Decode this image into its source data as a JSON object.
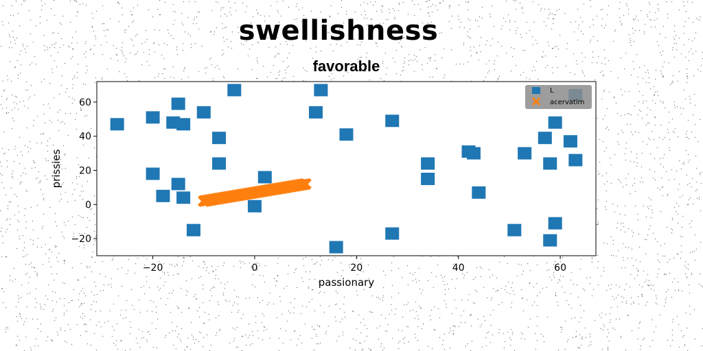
{
  "figure": {
    "suptitle": "swellishness",
    "title": "favorable"
  },
  "chart_data": {
    "type": "scatter",
    "xlabel": "passionary",
    "ylabel": "prissies",
    "xlim": [
      -31,
      67
    ],
    "ylim": [
      -30,
      72
    ],
    "xticks": [
      -20,
      0,
      20,
      40,
      60
    ],
    "yticks": [
      -20,
      0,
      20,
      40,
      60
    ],
    "grid": false,
    "legend_position": "top-right",
    "series": [
      {
        "name": "L",
        "color": "#1f77b4",
        "marker": "square",
        "points": [
          [
            -27,
            47
          ],
          [
            -20,
            51
          ],
          [
            -16,
            48
          ],
          [
            -15,
            59
          ],
          [
            -14,
            47
          ],
          [
            -10,
            54
          ],
          [
            -7,
            39
          ],
          [
            -7,
            24
          ],
          [
            -4,
            67
          ],
          [
            -20,
            18
          ],
          [
            -18,
            5
          ],
          [
            -15,
            12
          ],
          [
            -14,
            4
          ],
          [
            -12,
            -15
          ],
          [
            0,
            -1
          ],
          [
            2,
            16
          ],
          [
            12,
            54
          ],
          [
            13,
            67
          ],
          [
            18,
            41
          ],
          [
            16,
            -25
          ],
          [
            27,
            49
          ],
          [
            27,
            -17
          ],
          [
            34,
            24
          ],
          [
            34,
            15
          ],
          [
            42,
            31
          ],
          [
            43,
            30
          ],
          [
            44,
            7
          ],
          [
            51,
            -15
          ],
          [
            53,
            30
          ],
          [
            57,
            39
          ],
          [
            58,
            24
          ],
          [
            59,
            48
          ],
          [
            62,
            37
          ],
          [
            63,
            26
          ],
          [
            63,
            64
          ],
          [
            59,
            -11
          ],
          [
            58,
            -21
          ]
        ]
      },
      {
        "name": "acervatim",
        "color": "#ff7f0e",
        "marker": "x",
        "line": {
          "x_start": -10,
          "x_end": 10,
          "y_start": 2,
          "y_end": 12,
          "count": 60
        }
      }
    ]
  }
}
